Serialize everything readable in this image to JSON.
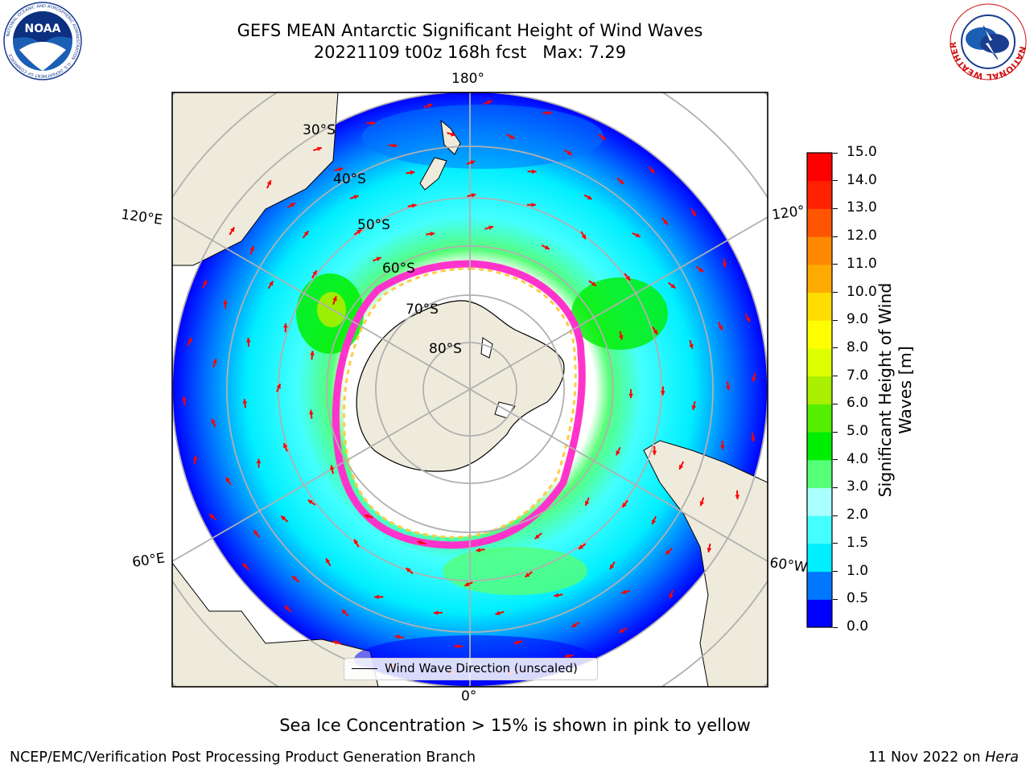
{
  "header": {
    "title_line1": "GEFS MEAN Antarctic Significant Height of Wind Waves",
    "title_line2": "20221109 t00z 168h fcst   Max: 7.29"
  },
  "logos": {
    "noaa_text": "NOAA",
    "noaa_ring_text": "NATIONAL OCEANIC AND ATMOSPHERIC ADMINISTRATION · U.S. DEPARTMENT OF COMMERCE",
    "nws_ring_text": "NATIONAL WEATHER SERVICE"
  },
  "map": {
    "projection": "south polar stereographic",
    "longitude_labels": {
      "top": "180°",
      "bottom": "0°",
      "upper_left": "120°E",
      "lower_left": "60°E",
      "upper_right": "120°",
      "lower_right": "60°W"
    },
    "latitude_labels": [
      "30°S",
      "40°S",
      "50°S",
      "60°S",
      "70°S",
      "80°S"
    ],
    "legend_label": "Wind Wave Direction (unscaled)",
    "arrow_color": "#ff0000",
    "sea_ice_colors": [
      "#ff33cc",
      "#ff66aa",
      "#ffaa66",
      "#ffcc44",
      "#ffee66"
    ]
  },
  "colorbar": {
    "title_line1": "Significant Height of Wind",
    "title_line2": "Waves [m]",
    "ticks": [
      "0.0",
      "0.5",
      "1.0",
      "1.5",
      "2.0",
      "3.0",
      "4.0",
      "5.0",
      "6.0",
      "7.0",
      "8.0",
      "9.0",
      "10.0",
      "11.0",
      "12.0",
      "13.0",
      "14.0",
      "15.0"
    ],
    "colors": [
      "#0000ff",
      "#0077ff",
      "#00eeff",
      "#44ffff",
      "#aaffff",
      "#55ff77",
      "#00ee00",
      "#55ee00",
      "#aaee00",
      "#ddff00",
      "#ffff00",
      "#ffdd00",
      "#ffaa00",
      "#ff8800",
      "#ff5500",
      "#ff2200",
      "#ff0000"
    ]
  },
  "footer": {
    "caption": "Sea Ice Concentration > 15% is shown in pink to yellow",
    "credit": "NCEP/EMC/Verification Post Processing Product Generation Branch",
    "date_text": "11 Nov 2022 on ",
    "machine": "Hera"
  }
}
